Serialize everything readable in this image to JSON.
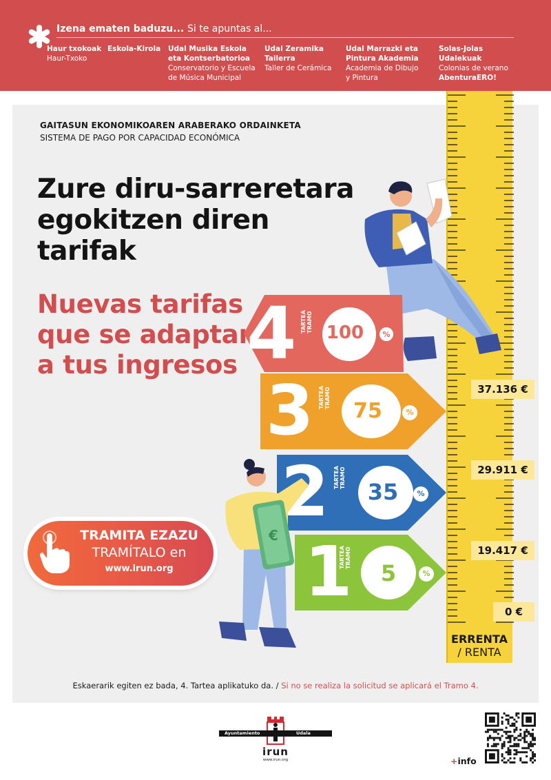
{
  "banner": {
    "headline_eu": "Izena ematen baduzu...",
    "headline_es": "Si te apuntas al...",
    "columns": [
      {
        "eu": [
          "Haur txokoak"
        ],
        "es": [
          "Haur-Txoko"
        ]
      },
      {
        "eu": [
          "Eskola-Kirola"
        ],
        "es": []
      },
      {
        "eu": [
          "Udal Musika Eskola",
          "eta Kontserbatorioa"
        ],
        "es": [
          "Conservatorio y Escuela",
          "de Música Municipal"
        ]
      },
      {
        "eu": [
          "Udal Zeramika",
          "Tailerra"
        ],
        "es": [
          "Taller de Cerámica"
        ]
      },
      {
        "eu": [
          "Udal Marrazki eta",
          "Pintura Akademia"
        ],
        "es": [
          "Academia de Dibujo",
          "y Pintura"
        ]
      },
      {
        "eu": [
          "Solas-Jolas",
          "Udalekuak"
        ],
        "es": [
          "Colonias de verano"
        ],
        "extra": "AbenturaERO!"
      }
    ]
  },
  "subtitle": {
    "eu": "GAITASUN EKONOMIKOAREN ARABERAKO ORDAINKETA",
    "es": "SISTEMA DE PAGO POR CAPACIDAD ECONÓMICA"
  },
  "title": {
    "eu": "Zure diru-sarreretara egokitzen diren tarifak",
    "es": "Nuevas tarifas que se adaptan a tus ingresos"
  },
  "cta": {
    "line1": "TRAMITA EZAZU",
    "line2": "TRAMÍTALO en",
    "line3": "www.irun.org"
  },
  "tramos": [
    {
      "number": "4",
      "label_eu": "TARTEA",
      "label_es": "TRAMO",
      "percent": "100",
      "color": "#e4675d"
    },
    {
      "number": "3",
      "label_eu": "TARTEA",
      "label_es": "TRAMO",
      "percent": "75",
      "color": "#f0a12b"
    },
    {
      "number": "2",
      "label_eu": "TARTEA",
      "label_es": "TRAMO",
      "percent": "35",
      "color": "#2f6fb8"
    },
    {
      "number": "1",
      "label_eu": "TARTEA",
      "label_es": "TRAMO",
      "percent": "5",
      "color": "#8cc43c"
    }
  ],
  "percent_symbol": "%",
  "thresholds": [
    "37.136 €",
    "29.911 €",
    "19.417 €",
    "0 €"
  ],
  "ruler_label": {
    "eu": "ERRENTA",
    "es": "/ RENTA"
  },
  "footer": {
    "eu": "Eskaerarik egiten ez bada, 4. Tartea aplikatuko da. /",
    "es": "Si no se realiza la solicitud se aplicará el Tramo 4."
  },
  "logo": {
    "left": "Ayuntamiento",
    "right": "Udala",
    "name": "irun",
    "url": "www.irun.org"
  },
  "info": {
    "plus": "+",
    "text": "info"
  },
  "colors": {
    "brand_red": "#d24e4e",
    "ruler_yellow": "#f6d33a",
    "panel_grey": "#efefef"
  }
}
